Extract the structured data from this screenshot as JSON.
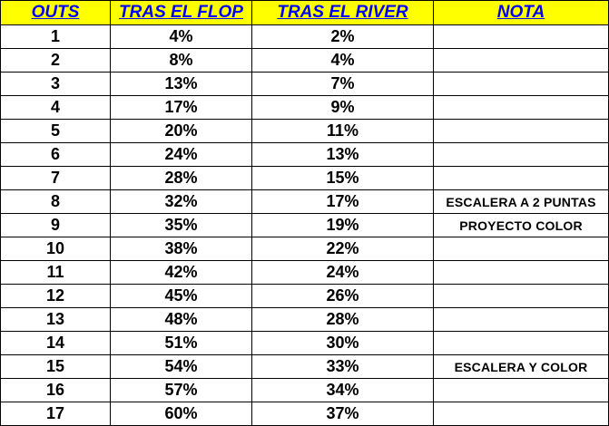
{
  "table": {
    "headers": [
      "OUTS",
      "TRAS EL FLOP",
      "TRAS EL RIVER",
      "NOTA"
    ],
    "header_background": "#ffff00",
    "header_text_color": "#0000ff",
    "rows": [
      {
        "outs": "1",
        "flop": "4%",
        "river": "2%",
        "note": ""
      },
      {
        "outs": "2",
        "flop": "8%",
        "river": "4%",
        "note": ""
      },
      {
        "outs": "3",
        "flop": "13%",
        "river": "7%",
        "note": ""
      },
      {
        "outs": "4",
        "flop": "17%",
        "river": "9%",
        "note": ""
      },
      {
        "outs": "5",
        "flop": "20%",
        "river": "11%",
        "note": ""
      },
      {
        "outs": "6",
        "flop": "24%",
        "river": "13%",
        "note": ""
      },
      {
        "outs": "7",
        "flop": "28%",
        "river": "15%",
        "note": ""
      },
      {
        "outs": "8",
        "flop": "32%",
        "river": "17%",
        "note": "ESCALERA A 2 PUNTAS"
      },
      {
        "outs": "9",
        "flop": "35%",
        "river": "19%",
        "note": "PROYECTO COLOR"
      },
      {
        "outs": "10",
        "flop": "38%",
        "river": "22%",
        "note": ""
      },
      {
        "outs": "11",
        "flop": "42%",
        "river": "24%",
        "note": ""
      },
      {
        "outs": "12",
        "flop": "45%",
        "river": "26%",
        "note": ""
      },
      {
        "outs": "13",
        "flop": "48%",
        "river": "28%",
        "note": ""
      },
      {
        "outs": "14",
        "flop": "51%",
        "river": "30%",
        "note": ""
      },
      {
        "outs": "15",
        "flop": "54%",
        "river": "33%",
        "note": "ESCALERA Y COLOR"
      },
      {
        "outs": "16",
        "flop": "57%",
        "river": "34%",
        "note": ""
      },
      {
        "outs": "17",
        "flop": "60%",
        "river": "37%",
        "note": ""
      }
    ]
  }
}
